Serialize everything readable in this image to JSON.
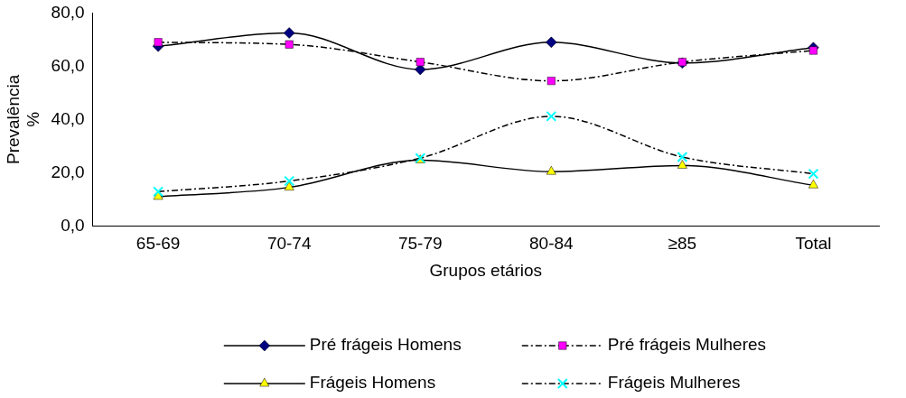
{
  "chart_data": {
    "type": "line",
    "xlabel": "Grupos etários",
    "ylabel": "Prevalência %",
    "categories": [
      "65-69",
      "70-74",
      "75-79",
      "80-84",
      "≥85",
      "Total"
    ],
    "ylim": [
      0,
      80
    ],
    "yticks": [
      {
        "value": 0,
        "label": "0,0"
      },
      {
        "value": 20,
        "label": "20,0"
      },
      {
        "value": 40,
        "label": "40,0"
      },
      {
        "value": 60,
        "label": "60,0"
      },
      {
        "value": 80,
        "label": "80,0"
      }
    ],
    "grid": false,
    "legend": "bottom",
    "series": [
      {
        "name": "Pré frágeis Homens",
        "color": "#000080",
        "marker": "diamond",
        "line_style": "solid",
        "values": [
          67.5,
          72.5,
          58.8,
          69.0,
          61.2,
          67.0
        ]
      },
      {
        "name": "Pré frágeis Mulheres",
        "color": "#ff00ff",
        "marker": "square",
        "line_style": "dashed",
        "values": [
          69.0,
          68.2,
          61.6,
          54.5,
          61.6,
          65.9
        ]
      },
      {
        "name": "Frágeis Homens",
        "color": "#ffff00",
        "marker": "triangle",
        "line_style": "solid",
        "values": [
          11.0,
          14.5,
          24.7,
          20.4,
          22.7,
          15.3
        ]
      },
      {
        "name": "Frágeis Mulheres",
        "color": "#00ffff",
        "marker": "cross",
        "line_style": "dashed",
        "values": [
          12.9,
          16.9,
          25.5,
          41.2,
          25.9,
          19.6
        ]
      }
    ]
  }
}
